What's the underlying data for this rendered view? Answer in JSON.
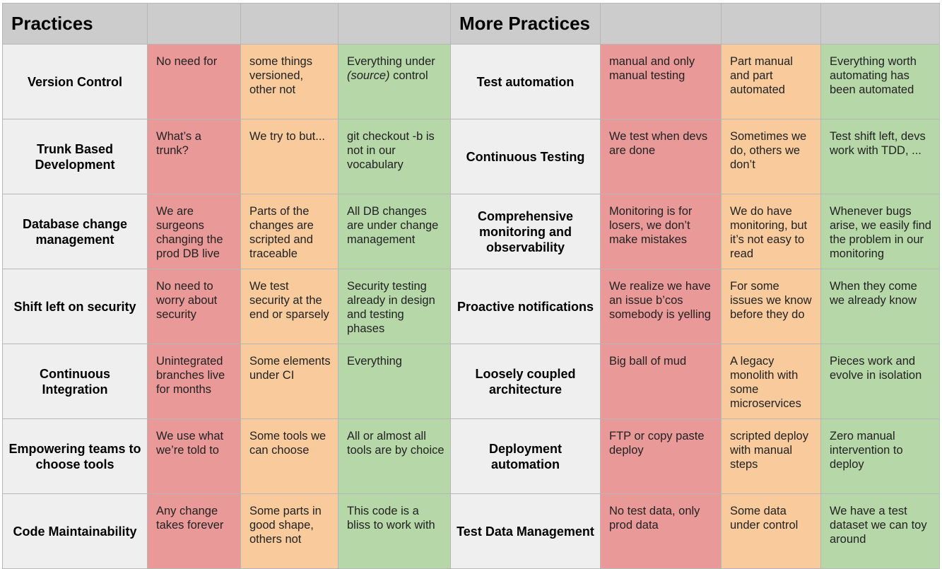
{
  "headers": {
    "left_title": "Practices",
    "right_title": "More Practices"
  },
  "rows": [
    {
      "left": {
        "name": "Version Control",
        "low": "No need for",
        "mid": "some things versioned, other not",
        "high_pre": "Everything under ",
        "high_em": "(source)",
        "high_post": " control"
      },
      "right": {
        "name": "Test automation",
        "low": "manual and only manual testing",
        "mid": "Part manual and part automated",
        "high": "Everything worth automating has been automated"
      }
    },
    {
      "left": {
        "name": "Trunk Based Development",
        "low": "What’s a trunk?",
        "mid": "We try to but...",
        "high": "git checkout -b is not in our vocabulary"
      },
      "right": {
        "name": "Continuous Testing",
        "low": "We test when devs are done",
        "mid": "Sometimes we do, others we don’t",
        "high": "Test shift left, devs work with TDD, ..."
      }
    },
    {
      "left": {
        "name": "Database change management",
        "low": "We are surgeons changing  the prod DB live",
        "mid": "Parts of the changes are scripted and traceable",
        "high": "All DB changes are under change management"
      },
      "right": {
        "name": "Comprehensive monitoring and observability",
        "low": "Monitoring is for losers, we don’t make mistakes",
        "mid": "We do have monitoring, but it’s not easy to read",
        "high": "Whenever bugs arise, we easily find the problem in our monitoring"
      }
    },
    {
      "left": {
        "name": "Shift left on security",
        "low": "No need to worry about security",
        "mid": "We test security at the end or sparsely",
        "high": "Security testing already in design and testing phases"
      },
      "right": {
        "name": "Proactive notifications",
        "low": "We realize we have an issue b’cos  somebody is yelling",
        "mid": "For some issues we know before they do",
        "high": "When they come we already know"
      }
    },
    {
      "left": {
        "name": "Continuous Integration",
        "low": "Unintegrated branches live for months",
        "mid": "Some elements under CI",
        "high": "Everything"
      },
      "right": {
        "name": "Loosely coupled architecture",
        "low": "Big ball of mud",
        "mid": "A legacy monolith with some microservices",
        "high": "Pieces work and evolve in isolation"
      }
    },
    {
      "left": {
        "name": "Empowering teams to choose tools",
        "low": "We use what we’re told to",
        "mid": "Some tools we can choose",
        "high": "All or almost all tools are by choice"
      },
      "right": {
        "name": "Deployment automation",
        "low": "FTP or copy paste deploy",
        "mid": "scripted deploy with manual steps",
        "high": "Zero manual intervention to deploy"
      }
    },
    {
      "left": {
        "name": "Code Maintainability",
        "low": "Any change takes forever",
        "mid": "Some parts in good shape, others not",
        "high": "This code is a bliss to work with"
      },
      "right": {
        "name": "Test Data Management",
        "low": "No test data, only prod data",
        "mid": "Some data under control",
        "high": "We have a test dataset we can toy around"
      }
    }
  ]
}
